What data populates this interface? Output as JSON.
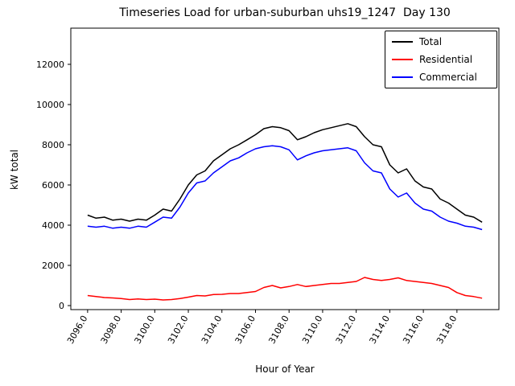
{
  "chart_data": {
    "type": "line",
    "title": "Timeseries Load for urban-suburban uhs19_1247  Day 130",
    "xlabel": "Hour of Year",
    "ylabel": "kW total",
    "xlim": [
      3095.0,
      3120.5
    ],
    "ylim": [
      -200,
      13800
    ],
    "xticks": [
      3096.0,
      3098.0,
      3100.0,
      3102.0,
      3104.0,
      3106.0,
      3108.0,
      3110.0,
      3112.0,
      3114.0,
      3116.0,
      3118.0
    ],
    "yticks": [
      0,
      2000,
      4000,
      6000,
      8000,
      10000,
      12000
    ],
    "grid": false,
    "legend_position": "upper right",
    "x": [
      3096.0,
      3096.5,
      3097.0,
      3097.5,
      3098.0,
      3098.5,
      3099.0,
      3099.5,
      3100.0,
      3100.5,
      3101.0,
      3101.5,
      3102.0,
      3102.5,
      3103.0,
      3103.5,
      3104.0,
      3104.5,
      3105.0,
      3105.5,
      3106.0,
      3106.5,
      3107.0,
      3107.5,
      3108.0,
      3108.5,
      3109.0,
      3109.5,
      3110.0,
      3110.5,
      3111.0,
      3111.5,
      3112.0,
      3112.5,
      3113.0,
      3113.5,
      3114.0,
      3114.5,
      3115.0,
      3115.5,
      3116.0,
      3116.5,
      3117.0,
      3117.5,
      3118.0,
      3118.5,
      3119.0,
      3119.5
    ],
    "series": [
      {
        "name": "Total",
        "color": "#000000",
        "values": [
          4500,
          4350,
          4400,
          4250,
          4300,
          4200,
          4300,
          4250,
          4500,
          4800,
          4700,
          5300,
          6000,
          6500,
          6700,
          7200,
          7500,
          7800,
          8000,
          8250,
          8500,
          8800,
          8900,
          8850,
          8700,
          8250,
          8400,
          8600,
          8750,
          8850,
          8950,
          9050,
          8900,
          8400,
          8000,
          7900,
          7000,
          6600,
          6800,
          6200,
          5900,
          5800,
          5300,
          5100,
          4800,
          4500,
          4400,
          4150
        ]
      },
      {
        "name": "Residential",
        "color": "#ff0000",
        "values": [
          500,
          450,
          400,
          380,
          350,
          300,
          330,
          300,
          320,
          280,
          300,
          350,
          420,
          500,
          480,
          550,
          560,
          600,
          600,
          650,
          700,
          900,
          1000,
          880,
          950,
          1050,
          950,
          1000,
          1050,
          1100,
          1100,
          1150,
          1200,
          1400,
          1300,
          1250,
          1300,
          1380,
          1250,
          1200,
          1150,
          1100,
          1000,
          900,
          650,
          500,
          450,
          370
        ]
      },
      {
        "name": "Commercial",
        "color": "#0000ff",
        "values": [
          3950,
          3900,
          3950,
          3850,
          3900,
          3850,
          3950,
          3900,
          4150,
          4400,
          4350,
          4900,
          5600,
          6100,
          6200,
          6600,
          6900,
          7200,
          7350,
          7600,
          7800,
          7900,
          7950,
          7900,
          7750,
          7250,
          7450,
          7600,
          7700,
          7750,
          7800,
          7850,
          7700,
          7100,
          6700,
          6600,
          5800,
          5400,
          5600,
          5100,
          4800,
          4700,
          4400,
          4200,
          4100,
          3950,
          3900,
          3780
        ]
      }
    ]
  }
}
